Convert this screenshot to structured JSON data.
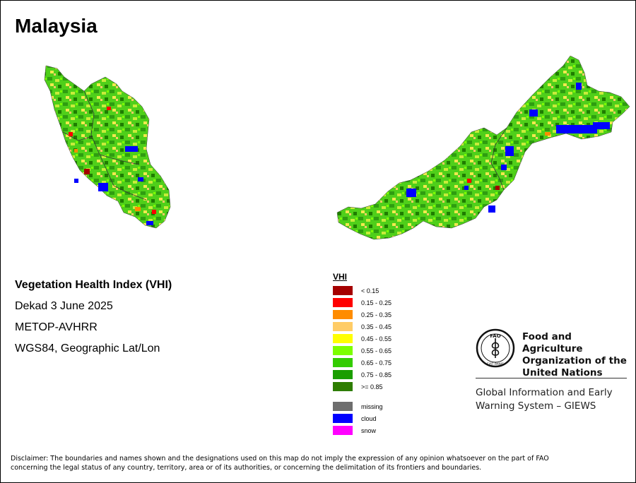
{
  "map": {
    "title": "Malaysia",
    "product": "Vegetation Health Index (VHI)",
    "period": "Dekad 3 June 2025",
    "sensor": "METOP-AVHRR",
    "projection": "WGS84, Geographic Lat/Lon"
  },
  "legend": {
    "title": "VHI",
    "classes": [
      {
        "label": "< 0.15",
        "color": "#a50000"
      },
      {
        "label": "0.15 - 0.25",
        "color": "#ff0000"
      },
      {
        "label": "0.25 - 0.35",
        "color": "#ff8c00"
      },
      {
        "label": "0.35 - 0.45",
        "color": "#ffcc66"
      },
      {
        "label": "0.45 - 0.55",
        "color": "#ffff00"
      },
      {
        "label": "0.55 - 0.65",
        "color": "#7cff00"
      },
      {
        "label": "0.65 - 0.75",
        "color": "#33cc00"
      },
      {
        "label": "0.75 - 0.85",
        "color": "#1a9e00"
      },
      {
        "label": ">= 0.85",
        "color": "#2e7d00"
      }
    ],
    "special": [
      {
        "label": "missing",
        "color": "#6e6e6e"
      },
      {
        "label": "cloud",
        "color": "#0000ff"
      },
      {
        "label": "snow",
        "color": "#ff00ff"
      }
    ]
  },
  "organization": {
    "name_line1": "Food and Agriculture",
    "name_line2": "Organization of the",
    "name_line3": "United Nations",
    "logo_text": "FAO",
    "logo_motto": "FIAT PANIS",
    "system_line1": "Global Information and Early",
    "system_line2": "Warning System – GIEWS"
  },
  "disclaimer": {
    "line1": "Disclaimer: The boundaries and names shown and the designations used on this map do not imply the expression of any opinion whatsoever on the part of FAO",
    "line2": "concerning the legal status of any country, territory, area or of its authorities, or concerning the delimitation of its frontiers and boundaries."
  }
}
